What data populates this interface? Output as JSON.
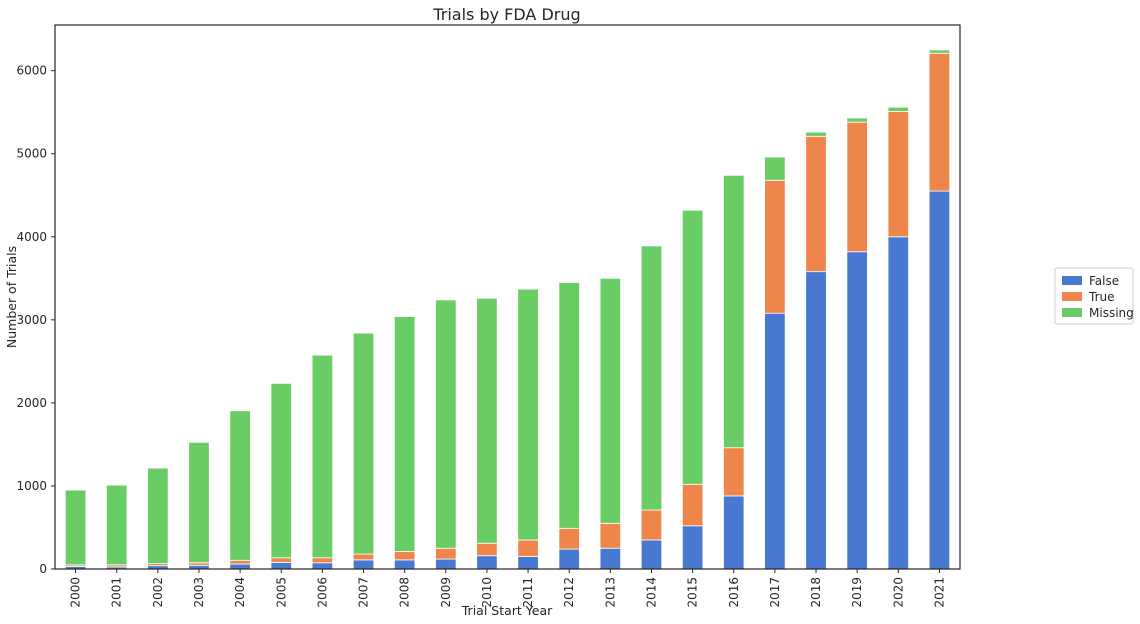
{
  "chart_data": {
    "type": "bar",
    "stacked": true,
    "title": "Trials by FDA Drug",
    "xlabel": "Trial Start Year",
    "ylabel": "Number of Trials",
    "ylim": [
      0,
      6550
    ],
    "yticks": [
      0,
      1000,
      2000,
      3000,
      4000,
      5000,
      6000
    ],
    "grid": false,
    "legend_position": "right",
    "categories": [
      "2000",
      "2001",
      "2002",
      "2003",
      "2004",
      "2005",
      "2006",
      "2007",
      "2008",
      "2009",
      "2010",
      "2011",
      "2012",
      "2013",
      "2014",
      "2015",
      "2016",
      "2017",
      "2018",
      "2019",
      "2020",
      "2021"
    ],
    "series": [
      {
        "name": "False",
        "color": "#4878cf",
        "values": [
          30,
          25,
          40,
          45,
          60,
          80,
          75,
          110,
          110,
          120,
          160,
          150,
          240,
          250,
          350,
          520,
          880,
          3080,
          3580,
          3820,
          4000,
          4550
        ]
      },
      {
        "name": "True",
        "color": "#ee854a",
        "values": [
          20,
          25,
          25,
          30,
          45,
          55,
          60,
          70,
          100,
          130,
          150,
          200,
          250,
          300,
          360,
          500,
          580,
          1600,
          1630,
          1560,
          1510,
          1660
        ]
      },
      {
        "name": "Missing",
        "color": "#6acc64",
        "values": [
          900,
          960,
          1150,
          1450,
          1800,
          2100,
          2440,
          2660,
          2830,
          2990,
          2950,
          3020,
          2960,
          2950,
          3180,
          3300,
          3280,
          280,
          50,
          50,
          50,
          40
        ]
      }
    ]
  }
}
